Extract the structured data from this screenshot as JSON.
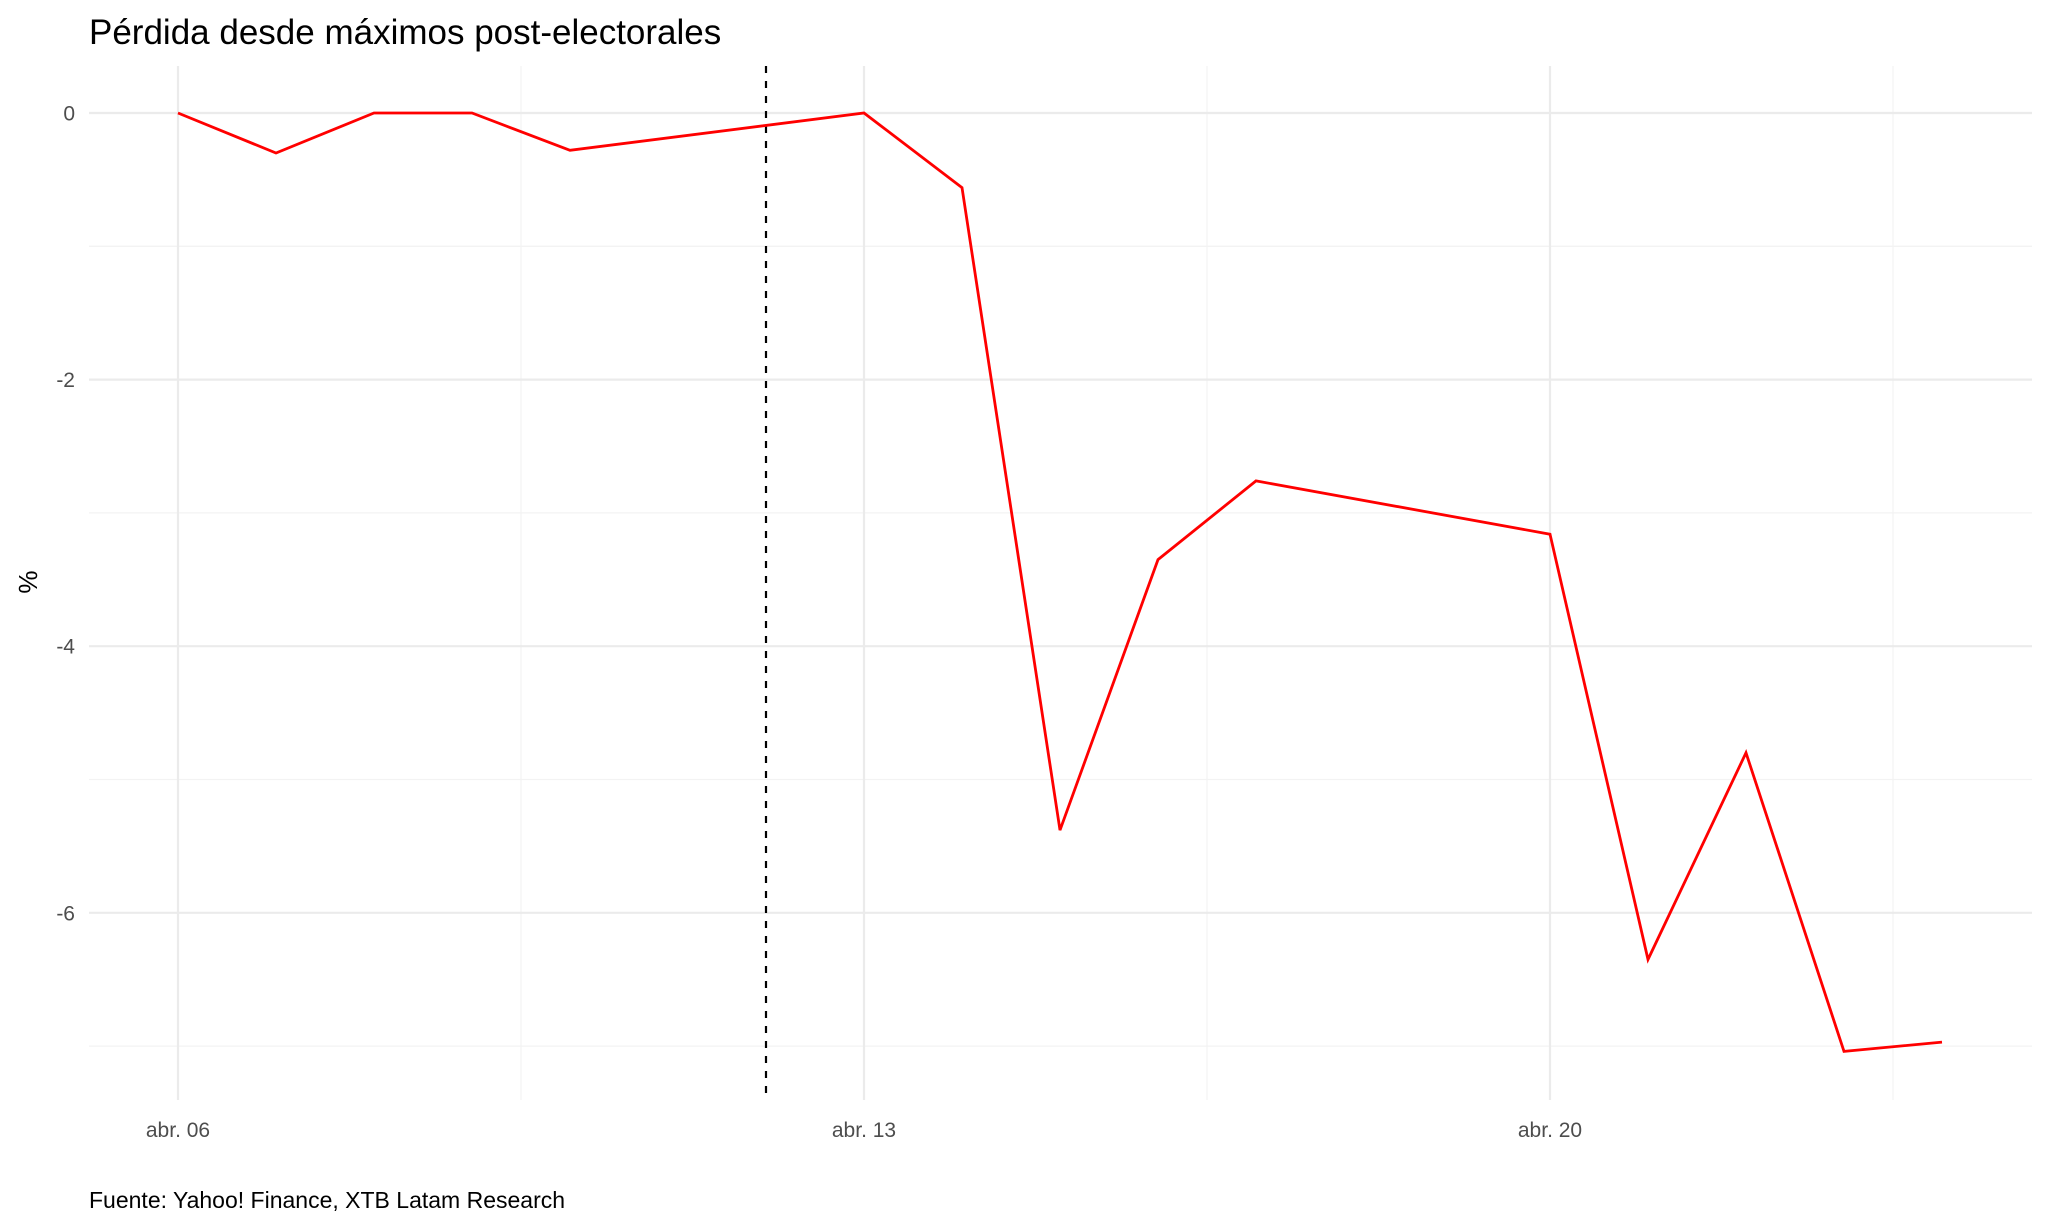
{
  "chart_data": {
    "type": "line",
    "title": "Pérdida desde máximos post-electorales",
    "xlabel": "",
    "ylabel": "%",
    "caption": "Fuente: Yahoo! Finance, XTB Latam Research",
    "x": [
      "abr. 06",
      "abr. 07",
      "abr. 08",
      "abr. 09",
      "abr. 10",
      "abr. 13",
      "abr. 14",
      "abr. 15",
      "abr. 16",
      "abr. 17",
      "abr. 20",
      "abr. 21",
      "abr. 22",
      "abr. 23",
      "abr. 24"
    ],
    "x_day": [
      6,
      7,
      8,
      9,
      10,
      13,
      14,
      15,
      16,
      17,
      20,
      21,
      22,
      23,
      24
    ],
    "series": [
      {
        "name": "Pérdida desde máximos",
        "color": "#ff0000",
        "values": [
          0.0,
          -0.3,
          0.0,
          0.0,
          -0.28,
          0.0,
          -0.56,
          -5.38,
          -3.35,
          -2.76,
          -3.16,
          -6.35,
          -4.8,
          -7.04,
          -6.97
        ]
      }
    ],
    "x_ticks": [
      {
        "label": "abr. 06",
        "day": 6
      },
      {
        "label": "abr. 13",
        "day": 13
      },
      {
        "label": "abr. 20",
        "day": 20
      }
    ],
    "x_minor_days": [
      9.5,
      16.5,
      23.5
    ],
    "y_ticks": [
      0,
      -2,
      -4,
      -6
    ],
    "y_tick_labels": [
      "0",
      "-2",
      "-4",
      "-6"
    ],
    "y_minor": [
      -1,
      -3,
      -5,
      -7
    ],
    "ylim": [
      -7.4,
      0.45
    ],
    "xlim_days": [
      5.1,
      24.9
    ],
    "vline": {
      "day": 12,
      "style": "dashed",
      "color": "#000000"
    },
    "grid": true,
    "legend": null
  }
}
